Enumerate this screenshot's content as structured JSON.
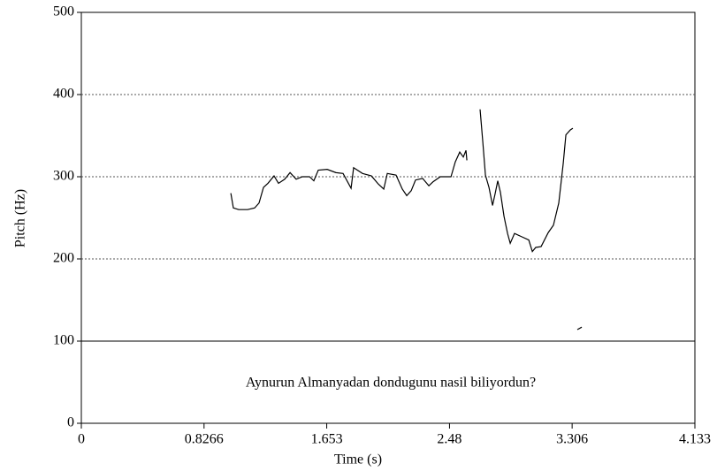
{
  "chart_data": {
    "type": "line",
    "x_label": "Time (s)",
    "y_label": "Pitch (Hz)",
    "annotation": "Aynurun Almanyadan dondugunu  nasil biliyordun?",
    "xlim": [
      0,
      4.133
    ],
    "xticks": [
      0,
      0.8266,
      1.653,
      2.48,
      3.306,
      4.133
    ],
    "ylim": [
      0,
      500
    ],
    "yticks": [
      0,
      100,
      200,
      300,
      400,
      500
    ],
    "grid": true,
    "hline": 100,
    "color": "#000000",
    "x": [
      1.007,
      1.024,
      1.06,
      1.12,
      1.167,
      1.197,
      1.227,
      1.257,
      1.298,
      1.328,
      1.37,
      1.406,
      1.447,
      1.489,
      1.537,
      1.566,
      1.596,
      1.656,
      1.715,
      1.763,
      1.817,
      1.834,
      1.894,
      1.954,
      2.001,
      2.037,
      2.061,
      2.12,
      2.162,
      2.192,
      2.222,
      2.251,
      2.299,
      2.341,
      2.37,
      2.418,
      2.49,
      2.519,
      2.549,
      2.573,
      2.591,
      2.597,
      2.65,
      2.686,
      2.704,
      2.722,
      2.746,
      2.77,
      2.787,
      2.805,
      2.823,
      2.847,
      2.871,
      2.889,
      2.918,
      2.966,
      3.014,
      3.038,
      3.061,
      3.097,
      3.145,
      3.18,
      3.216,
      3.246,
      3.264,
      3.294,
      3.311,
      3.33,
      3.341,
      3.371
    ],
    "values": [
      280,
      262,
      260,
      260,
      262,
      268,
      287,
      292,
      301,
      292,
      297,
      305,
      297,
      300,
      300,
      295,
      308,
      309,
      305,
      304,
      286,
      311,
      304,
      301,
      291,
      285,
      304,
      302,
      285,
      277,
      283,
      296,
      298,
      289,
      294,
      300,
      300,
      318,
      330,
      324,
      332,
      320,
      null,
      382,
      343,
      302,
      287,
      265,
      279,
      295,
      281,
      252,
      231,
      219,
      231,
      227,
      223,
      209,
      214,
      215,
      232,
      241,
      268,
      316,
      351,
      357,
      359,
      null,
      114,
      117
    ]
  }
}
